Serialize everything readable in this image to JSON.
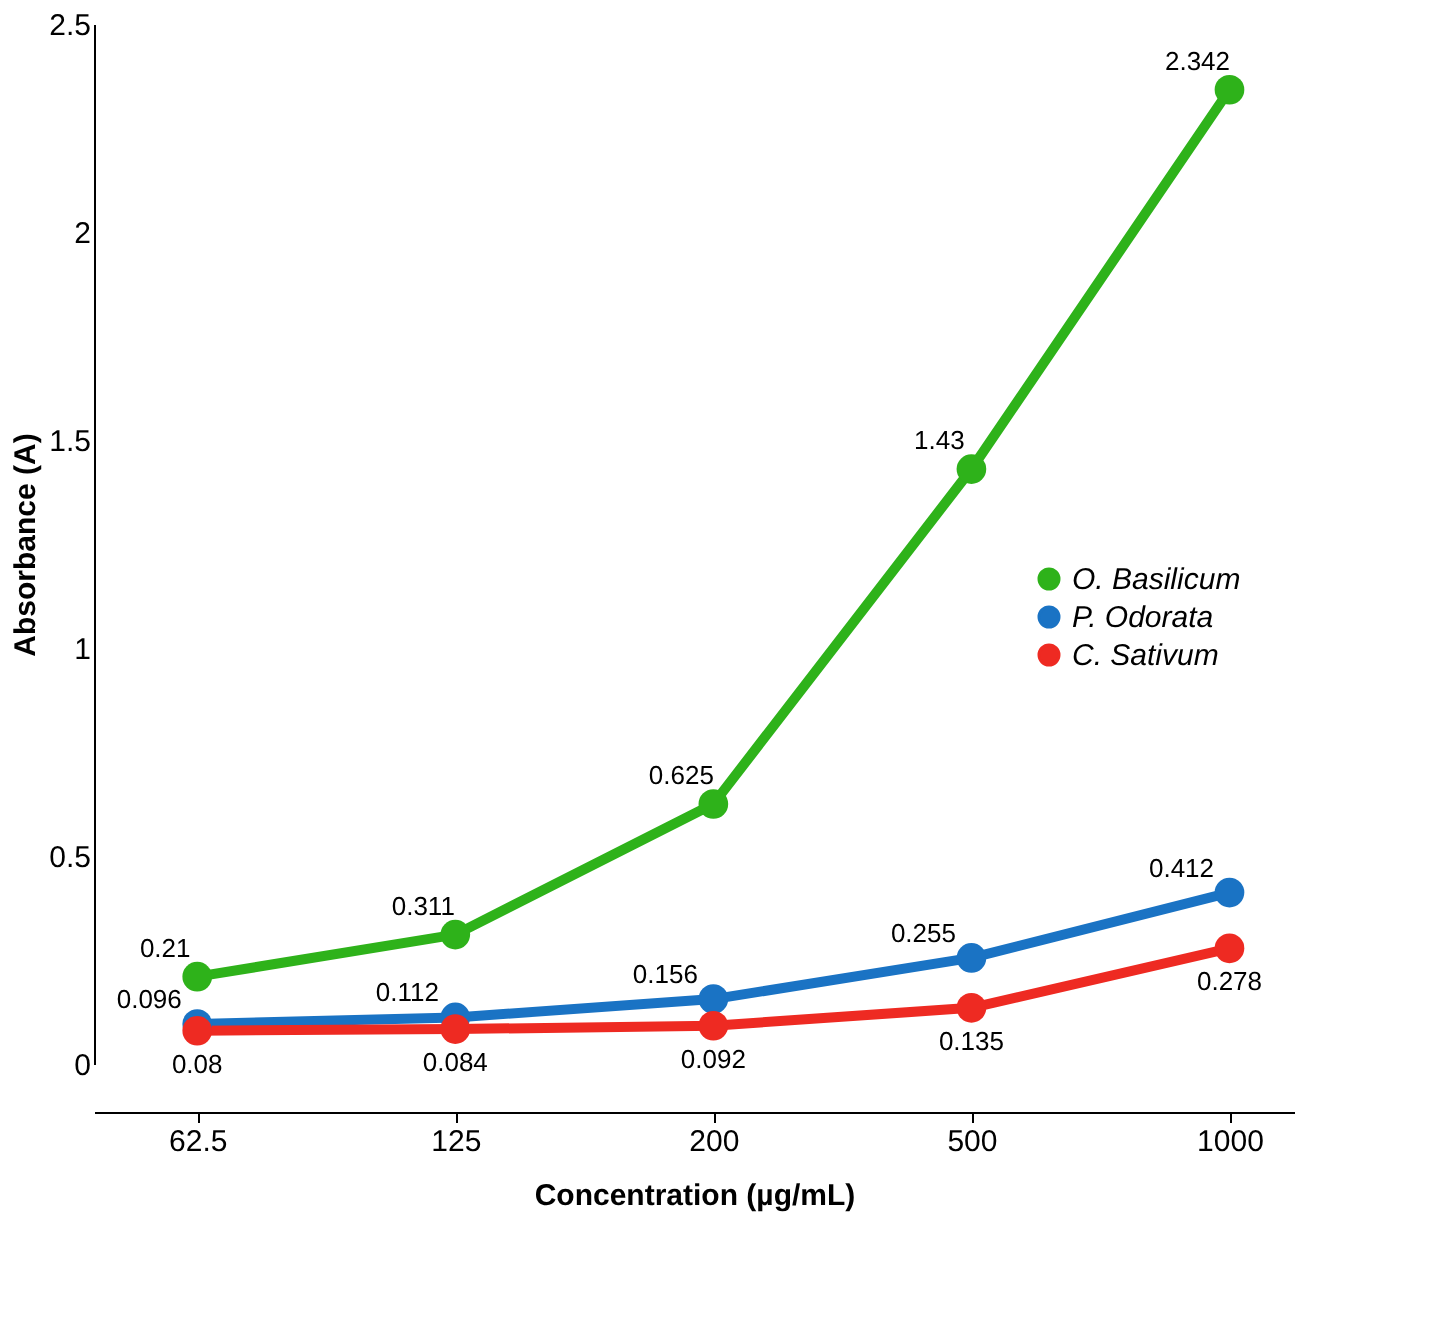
{
  "chart_data": {
    "type": "line",
    "xlabel": "Concentration (µg/mL)",
    "ylabel": "Absorbance (A)",
    "categories": [
      "62.5",
      "125",
      "200",
      "500",
      "1000"
    ],
    "series": [
      {
        "name": "O. Basilicum",
        "color": "#2eb21a",
        "values": [
          0.21,
          0.311,
          0.625,
          1.43,
          2.342
        ]
      },
      {
        "name": "P. Odorata",
        "color": "#1a73c4",
        "values": [
          0.096,
          0.112,
          0.156,
          0.255,
          0.412
        ]
      },
      {
        "name": "C. Sativum",
        "color": "#ee2a22",
        "values": [
          0.08,
          0.084,
          0.092,
          0.135,
          0.278
        ]
      }
    ],
    "ylim": [
      0,
      2.5
    ],
    "yticks": [
      0,
      0.5,
      1,
      1.5,
      2,
      2.5
    ],
    "grid": false,
    "legend": "right",
    "marker": "circle",
    "line_style": "solid",
    "data_labels": true
  }
}
